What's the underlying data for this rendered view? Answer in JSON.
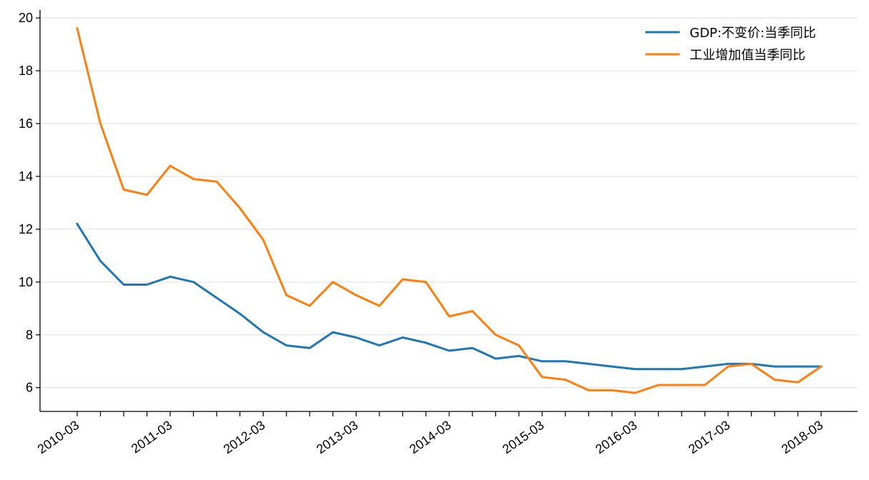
{
  "chart_data": {
    "type": "line",
    "title": "",
    "xlabel": "",
    "ylabel": "",
    "grid": "horizontal",
    "legend_position": "top-right",
    "ylim": [
      5.1,
      20.3
    ],
    "y_ticks": [
      6,
      8,
      10,
      12,
      14,
      16,
      18,
      20
    ],
    "x": [
      "2010-03",
      "2010-06",
      "2010-09",
      "2010-12",
      "2011-03",
      "2011-06",
      "2011-09",
      "2011-12",
      "2012-03",
      "2012-06",
      "2012-09",
      "2012-12",
      "2013-03",
      "2013-06",
      "2013-09",
      "2013-12",
      "2014-03",
      "2014-06",
      "2014-09",
      "2014-12",
      "2015-03",
      "2015-06",
      "2015-09",
      "2015-12",
      "2016-03",
      "2016-06",
      "2016-09",
      "2016-12",
      "2017-03",
      "2017-06",
      "2017-09",
      "2017-12",
      "2018-03"
    ],
    "x_tick_labels": [
      "2010-03",
      "2011-03",
      "2012-03",
      "2013-03",
      "2014-03",
      "2015-03",
      "2016-03",
      "2017-03",
      "2018-03"
    ],
    "series": [
      {
        "name": "GDP:不变价:当季同比",
        "color": "#1f77b4",
        "values": [
          12.2,
          10.8,
          9.9,
          9.9,
          10.2,
          10.0,
          9.4,
          8.8,
          8.1,
          7.6,
          7.5,
          8.1,
          7.9,
          7.6,
          7.9,
          7.7,
          7.4,
          7.5,
          7.1,
          7.2,
          7.0,
          7.0,
          6.9,
          6.8,
          6.7,
          6.7,
          6.7,
          6.8,
          6.9,
          6.9,
          6.8,
          6.8,
          6.8
        ]
      },
      {
        "name": "工业增加值当季同比",
        "color": "#ff7f0e",
        "values": [
          19.6,
          16.0,
          13.5,
          13.3,
          14.4,
          13.9,
          13.8,
          12.8,
          11.6,
          9.5,
          9.1,
          10.0,
          9.5,
          9.1,
          10.1,
          10.0,
          8.7,
          8.9,
          8.0,
          7.6,
          6.4,
          6.3,
          5.9,
          5.9,
          5.8,
          6.1,
          6.1,
          6.1,
          6.8,
          6.9,
          6.3,
          6.2,
          6.8
        ]
      }
    ]
  }
}
